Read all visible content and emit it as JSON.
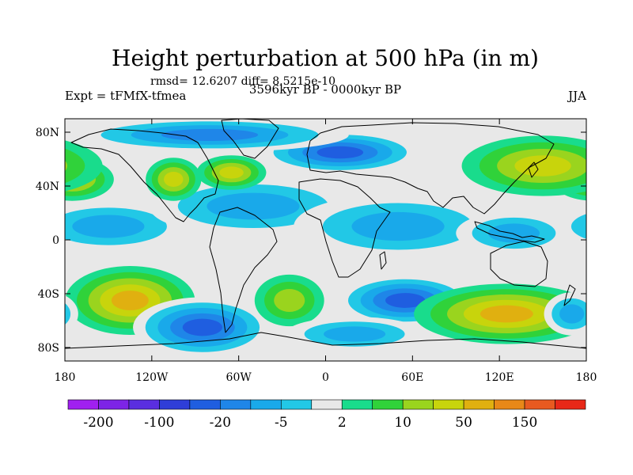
{
  "title": "Height perturbation at 500 hPa (in m)",
  "stats": "rmsd= 12.6207 diff= 8.5215e-10",
  "period": "3596kyr BP - 0000kyr BP",
  "experiment": "Expt = tFMfX-tfmea",
  "season": "JJA",
  "map": {
    "lon_range": [
      -180,
      180
    ],
    "lat_range": [
      -90,
      90
    ],
    "lat_ticks": [
      {
        "value": 80,
        "label": "80N"
      },
      {
        "value": 40,
        "label": "40N"
      },
      {
        "value": 0,
        "label": "0"
      },
      {
        "value": -40,
        "label": "40S"
      },
      {
        "value": -80,
        "label": "80S"
      }
    ],
    "lon_ticks": [
      {
        "value": -180,
        "label": "180"
      },
      {
        "value": -120,
        "label": "120W"
      },
      {
        "value": -60,
        "label": "60W"
      },
      {
        "value": 0,
        "label": "0"
      },
      {
        "value": 60,
        "label": "60E"
      },
      {
        "value": 120,
        "label": "120E"
      },
      {
        "value": 180,
        "label": "180"
      }
    ],
    "neutral_color": "#e8e8e8"
  },
  "colorbar": {
    "colors": [
      "#a020f0",
      "#7d24e6",
      "#5a2ee0",
      "#2f3ed8",
      "#1f5ee0",
      "#1f86e8",
      "#19a9ea",
      "#22c8e6",
      "#e8e8e8",
      "#19dc8c",
      "#30d23a",
      "#9ad41e",
      "#c8d40c",
      "#e0b010",
      "#e88818",
      "#e85a20",
      "#e82818"
    ],
    "labels": [
      {
        "boundary": 1,
        "text": "-200"
      },
      {
        "boundary": 3,
        "text": "-100"
      },
      {
        "boundary": 5,
        "text": "-20"
      },
      {
        "boundary": 7,
        "text": "-5"
      },
      {
        "boundary": 9,
        "text": "2"
      },
      {
        "boundary": 11,
        "text": "10"
      },
      {
        "boundary": 13,
        "text": "50"
      },
      {
        "boundary": 15,
        "text": "150"
      }
    ]
  },
  "field_features": [
    {
      "name": "south-pacific-high",
      "lon": -135,
      "lat": -45,
      "sx": 28,
      "sy": 16,
      "level": 13
    },
    {
      "name": "southeast-pacific-low",
      "lon": -85,
      "lat": -65,
      "sx": 30,
      "sy": 14,
      "level": 4
    },
    {
      "name": "south-atlantic-high",
      "lon": -25,
      "lat": -45,
      "sx": 15,
      "sy": 12,
      "level": 11
    },
    {
      "name": "southern-indian-low",
      "lon": 55,
      "lat": -45,
      "sx": 30,
      "sy": 12,
      "level": 4
    },
    {
      "name": "southern-australia-high",
      "lon": 125,
      "lat": -55,
      "sx": 40,
      "sy": 14,
      "level": 13
    },
    {
      "name": "tasman-low",
      "lon": 170,
      "lat": -55,
      "sx": 12,
      "sy": 10,
      "level": 6
    },
    {
      "name": "southern-ocean-low",
      "lon": 20,
      "lat": -70,
      "sx": 30,
      "sy": 8,
      "level": 6
    },
    {
      "name": "tropical-pacific-negative",
      "lon": -150,
      "lat": 10,
      "sx": 35,
      "sy": 12,
      "level": 6
    },
    {
      "name": "tropical-atlantic-negative",
      "lon": -50,
      "lat": 25,
      "sx": 45,
      "sy": 14,
      "level": 6
    },
    {
      "name": "tropical-indian-negative",
      "lon": 50,
      "lat": 10,
      "sx": 45,
      "sy": 15,
      "level": 6
    },
    {
      "name": "western-pacific-negative",
      "lon": 130,
      "lat": 5,
      "sx": 25,
      "sy": 10,
      "level": 6
    },
    {
      "name": "north-pacific-high",
      "lon": -175,
      "lat": 45,
      "sx": 18,
      "sy": 10,
      "level": 12
    },
    {
      "name": "north-america-high",
      "lon": -105,
      "lat": 45,
      "sx": 12,
      "sy": 10,
      "level": 12
    },
    {
      "name": "labrador-high",
      "lon": -65,
      "lat": 50,
      "sx": 15,
      "sy": 8,
      "level": 12
    },
    {
      "name": "east-asia-high",
      "lon": 150,
      "lat": 55,
      "sx": 35,
      "sy": 14,
      "level": 12
    },
    {
      "name": "europe-low",
      "lon": 10,
      "lat": 65,
      "sx": 35,
      "sy": 10,
      "level": 4
    },
    {
      "name": "arctic-low",
      "lon": -80,
      "lat": 78,
      "sx": 60,
      "sy": 8,
      "level": 5
    }
  ]
}
